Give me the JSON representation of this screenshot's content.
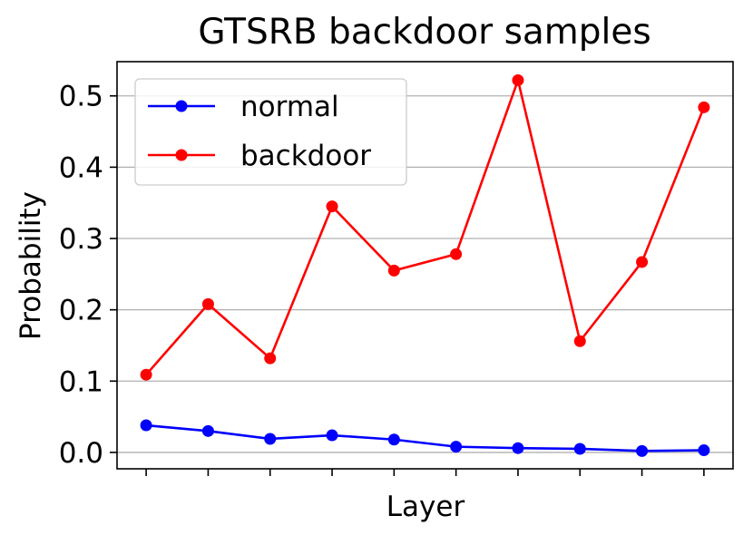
{
  "chart_data": {
    "type": "line",
    "title": "GTSRB backdoor samples",
    "xlabel": "Layer",
    "ylabel": "Probability",
    "x": [
      1,
      2,
      3,
      4,
      5,
      6,
      7,
      8,
      9,
      10
    ],
    "xlim": [
      0.53,
      10.47
    ],
    "ylim": [
      -0.023,
      0.548
    ],
    "yticks": [
      0.0,
      0.1,
      0.2,
      0.3,
      0.4,
      0.5
    ],
    "ytick_labels": [
      "0.0",
      "0.1",
      "0.2",
      "0.3",
      "0.4",
      "0.5"
    ],
    "grid": "horizontal",
    "legend_position": "top-left",
    "series": [
      {
        "name": "normal",
        "color": "#0000ff",
        "values": [
          0.038,
          0.03,
          0.019,
          0.024,
          0.018,
          0.008,
          0.006,
          0.005,
          0.002,
          0.003
        ]
      },
      {
        "name": "backdoor",
        "color": "#ff0000",
        "values": [
          0.109,
          0.208,
          0.132,
          0.345,
          0.255,
          0.278,
          0.522,
          0.156,
          0.267,
          0.484
        ]
      }
    ]
  }
}
